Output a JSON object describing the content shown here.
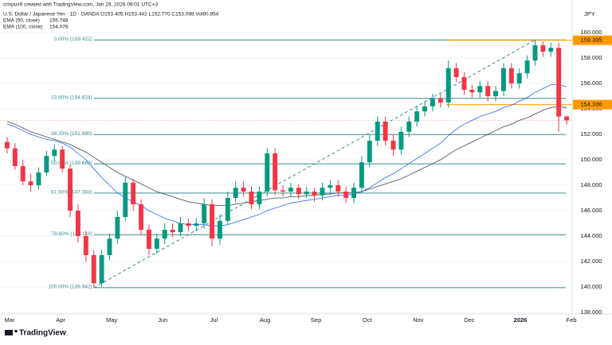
{
  "header": {
    "creator": "crispus9 created with TradingView.com, Jan 29, 2026 09:01 UTC+3",
    "symbol": "U.S. Dollar / Japanese Yen · 1D · OANDA  O153.405  H153.442  L152.770  C153.098  Vol80.854",
    "currency": "JPY",
    "logo": "TradingView"
  },
  "chart_data": {
    "type": "candlestick",
    "x_labels": [
      "Mar",
      "Apr",
      "May",
      "Jun",
      "Jul",
      "Aug",
      "Sep",
      "Oct",
      "Nov",
      "Dec",
      "2026",
      "Feb"
    ],
    "open": [
      151.4,
      150.9,
      149.5,
      148.3,
      148.0,
      149.0,
      150.3,
      150.8,
      149.3,
      146.0,
      144.0,
      142.5,
      140.3,
      142.5,
      143.8,
      145.5,
      148.2,
      146.5,
      144.5,
      143.0,
      143.8,
      144.5,
      144.3,
      145.0,
      144.8,
      145.0,
      146.5,
      143.8,
      145.2,
      147.0,
      147.8,
      147.5,
      146.5,
      147.5,
      150.5,
      147.6,
      147.5,
      147.8,
      147.3,
      147.5,
      147.2,
      147.8,
      148.0,
      147.5,
      147.0,
      147.8,
      149.8,
      151.5,
      153.0,
      151.5,
      150.8,
      152.2,
      153.0,
      153.8,
      154.2,
      154.8,
      154.5,
      157.2,
      156.5,
      155.5,
      155.3,
      155.8,
      155.0,
      155.4,
      157.2,
      156.0,
      156.8,
      157.8,
      159.0,
      158.5,
      158.8,
      153.405
    ],
    "high": [
      151.8,
      151.3,
      150.0,
      148.9,
      149.4,
      150.7,
      151.2,
      151.1,
      149.6,
      146.5,
      144.4,
      142.9,
      142.9,
      144.2,
      146.0,
      148.7,
      148.5,
      146.9,
      144.9,
      144.2,
      145.0,
      145.0,
      145.5,
      145.4,
      145.4,
      147.0,
      146.9,
      145.7,
      147.5,
      148.3,
      148.3,
      147.9,
      147.9,
      150.9,
      150.9,
      148.0,
      148.2,
      148.1,
      147.9,
      147.8,
      148.2,
      148.4,
      148.4,
      147.9,
      148.2,
      150.3,
      152.0,
      153.4,
      153.4,
      152.0,
      152.6,
      153.4,
      154.2,
      154.6,
      155.2,
      155.2,
      157.8,
      157.6,
      156.9,
      155.9,
      156.2,
      156.2,
      155.8,
      157.6,
      157.6,
      157.2,
      158.2,
      159.422,
      159.3,
      159.2,
      159.2,
      153.442
    ],
    "low": [
      150.5,
      149.2,
      148.0,
      147.5,
      147.7,
      148.7,
      149.9,
      149.0,
      145.5,
      143.5,
      142.0,
      139.942,
      140.0,
      142.1,
      143.4,
      145.2,
      146.0,
      144.1,
      142.5,
      142.6,
      143.4,
      143.9,
      144.0,
      144.4,
      144.4,
      144.6,
      143.2,
      143.3,
      144.9,
      146.6,
      147.1,
      146.1,
      146.1,
      147.1,
      147.2,
      147.1,
      147.1,
      146.9,
      147.0,
      146.7,
      146.8,
      147.4,
      147.1,
      146.6,
      146.6,
      147.4,
      149.4,
      151.1,
      151.1,
      150.3,
      150.4,
      151.8,
      152.6,
      153.4,
      153.8,
      154.1,
      154.1,
      156.1,
      155.1,
      154.9,
      154.9,
      154.6,
      154.6,
      155.0,
      155.6,
      155.6,
      156.4,
      157.4,
      158.1,
      158.1,
      152.2,
      152.77
    ],
    "close": [
      150.9,
      149.5,
      148.3,
      148.0,
      149.0,
      150.3,
      150.8,
      149.3,
      146.0,
      144.0,
      142.5,
      140.3,
      142.5,
      143.8,
      145.5,
      148.2,
      146.5,
      144.5,
      143.0,
      143.8,
      144.5,
      144.3,
      145.0,
      144.8,
      145.0,
      146.5,
      143.8,
      145.2,
      147.0,
      147.8,
      147.5,
      146.5,
      147.5,
      150.5,
      147.6,
      147.5,
      147.8,
      147.3,
      147.5,
      147.2,
      147.8,
      148.0,
      147.5,
      147.0,
      147.8,
      149.8,
      151.5,
      153.0,
      151.5,
      150.8,
      152.2,
      153.0,
      153.8,
      154.2,
      154.8,
      154.5,
      157.2,
      156.5,
      155.5,
      155.3,
      155.8,
      155.0,
      155.4,
      157.2,
      156.0,
      156.8,
      157.8,
      159.0,
      158.5,
      158.8,
      153.4,
      153.098
    ],
    "up_color": "#089981",
    "down_color": "#f23645",
    "series": [
      {
        "name": "EMA (50, close)",
        "last_label": "155.748",
        "color": "#2962ff",
        "values": [
          152.8,
          152.6,
          152.3,
          152.0,
          151.8,
          151.6,
          151.5,
          151.3,
          151.0,
          150.5,
          150.0,
          149.3,
          148.6,
          148.0,
          147.4,
          147.0,
          146.7,
          146.4,
          146.0,
          145.7,
          145.4,
          145.2,
          145.0,
          144.9,
          144.9,
          144.9,
          144.8,
          144.8,
          144.9,
          145.1,
          145.3,
          145.5,
          145.7,
          146.0,
          146.2,
          146.4,
          146.6,
          146.7,
          146.8,
          146.9,
          147.0,
          147.1,
          147.2,
          147.2,
          147.3,
          147.5,
          147.8,
          148.2,
          148.6,
          148.9,
          149.3,
          149.7,
          150.1,
          150.5,
          150.9,
          151.3,
          151.9,
          152.4,
          152.8,
          153.1,
          153.4,
          153.6,
          153.8,
          154.1,
          154.3,
          154.6,
          154.9,
          155.3,
          155.6,
          155.9,
          155.9,
          155.75
        ]
      },
      {
        "name": "EMA (100, close)",
        "last_label": "154.076",
        "color": "#434651",
        "values": [
          153.0,
          152.8,
          152.5,
          152.2,
          152.0,
          151.8,
          151.6,
          151.4,
          151.2,
          150.9,
          150.6,
          150.2,
          149.8,
          149.4,
          149.0,
          148.7,
          148.4,
          148.1,
          147.8,
          147.5,
          147.3,
          147.1,
          146.9,
          146.7,
          146.6,
          146.5,
          146.4,
          146.4,
          146.4,
          146.5,
          146.6,
          146.7,
          146.8,
          146.9,
          147.0,
          147.0,
          147.1,
          147.1,
          147.2,
          147.2,
          147.3,
          147.3,
          147.4,
          147.4,
          147.4,
          147.5,
          147.7,
          147.9,
          148.1,
          148.3,
          148.5,
          148.8,
          149.1,
          149.4,
          149.7,
          150.0,
          150.4,
          150.8,
          151.1,
          151.4,
          151.7,
          152.0,
          152.3,
          152.6,
          152.8,
          153.1,
          153.3,
          153.6,
          153.9,
          154.1,
          154.2,
          154.08
        ]
      }
    ],
    "fib_levels": [
      {
        "value": 159.422,
        "label": "0.00% (159.422)"
      },
      {
        "value": 154.824,
        "label": "23.60% (154.824)"
      },
      {
        "value": 151.98,
        "label": "38.20% (151.980)"
      },
      {
        "value": 149.682,
        "label": "50.00% (149.682)"
      },
      {
        "value": 147.383,
        "label": "61.80% (147.383)"
      },
      {
        "value": 144.11,
        "label": "78.60% (144.110)"
      },
      {
        "value": 139.942,
        "label": "100.00% (139.942)"
      }
    ],
    "fib_color": "#3a8c8c",
    "price_tags": [
      159.395,
      154.336
    ],
    "tag_color": "#ff9800",
    "ylim": [
      137.875,
      162.06
    ],
    "yticks": [
      {
        "value": 138,
        "label": "138.000"
      },
      {
        "value": 140,
        "label": "140.000"
      },
      {
        "value": 142,
        "label": "142.000"
      },
      {
        "value": 144,
        "label": "144.000"
      },
      {
        "value": 146,
        "label": "146.000"
      },
      {
        "value": 148,
        "label": "148.000"
      },
      {
        "value": 150,
        "label": "150.000"
      },
      {
        "value": 152,
        "label": "152.000"
      },
      {
        "value": 154,
        "label": "154.000"
      },
      {
        "value": 156,
        "label": "156.000"
      },
      {
        "value": 158,
        "label": "158.000"
      },
      {
        "value": 160,
        "label": "160.000"
      }
    ]
  }
}
